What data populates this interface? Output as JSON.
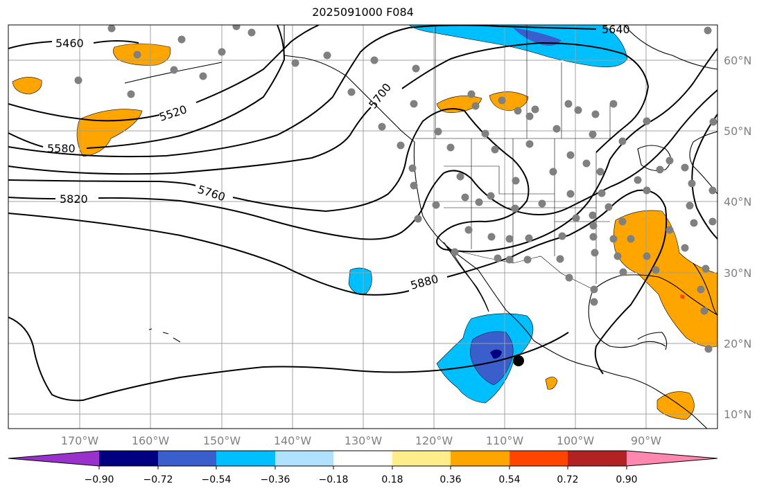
{
  "title": "2025091000 F084",
  "axes": {
    "lon_ticks": [
      "170°W",
      "160°W",
      "150°W",
      "140°W",
      "130°W",
      "120°W",
      "110°W",
      "100°W",
      "90°W"
    ],
    "lat_ticks": [
      "60°N",
      "50°N",
      "40°N",
      "30°N",
      "20°N",
      "10°N"
    ]
  },
  "contours": {
    "labels": [
      "5460",
      "5520",
      "5580",
      "5640",
      "5700",
      "5760",
      "5820",
      "5880"
    ],
    "color": "#000000"
  },
  "colorbar": {
    "ticks": [
      "−0.90",
      "−0.72",
      "−0.54",
      "−0.36",
      "−0.18",
      "0.18",
      "0.36",
      "0.54",
      "0.72",
      "0.90"
    ],
    "colors": [
      "#9932cc",
      "#000080",
      "#3a5fcd",
      "#00bfff",
      "#b0e2ff",
      "#ffffff",
      "#ffec8b",
      "#ffa500",
      "#ff4500",
      "#b22222",
      "#ff87b0"
    ]
  },
  "station_marker_color": "#808080",
  "storm_marker_color": "#000000"
}
